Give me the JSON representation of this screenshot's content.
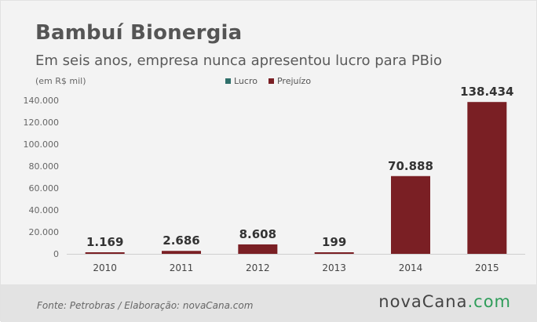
{
  "header": {
    "title": "Bambuí Bionergia",
    "subtitle": "Em seis anos, empresa nunca apresentou lucro para PBio",
    "unit_note": "(em R$ mil)"
  },
  "legend": [
    {
      "label": "Lucro",
      "color": "#2f6f6a"
    },
    {
      "label": "Prejuízo",
      "color": "#7a1f24"
    }
  ],
  "chart_data": {
    "type": "bar",
    "categories": [
      "2010",
      "2011",
      "2012",
      "2013",
      "2014",
      "2015"
    ],
    "series": [
      {
        "name": "Prejuízo",
        "values": [
          1169,
          2686,
          8608,
          199,
          70888,
          138434
        ],
        "color": "#7a1f24"
      }
    ],
    "data_labels": [
      "1.169",
      "2.686",
      "8.608",
      "199",
      "70.888",
      "138.434"
    ],
    "y_ticks": [
      "0",
      "20.000",
      "40.000",
      "60.000",
      "80.000",
      "100.000",
      "120.000",
      "140.000"
    ],
    "ylim": [
      0,
      140000
    ],
    "grid": false,
    "legend_position": "top-center"
  },
  "footer": {
    "source": "Fonte:  Petrobras   / Elaboração:  novaCana.com",
    "brand_main": "novaCana",
    "brand_suffix": ".com"
  }
}
